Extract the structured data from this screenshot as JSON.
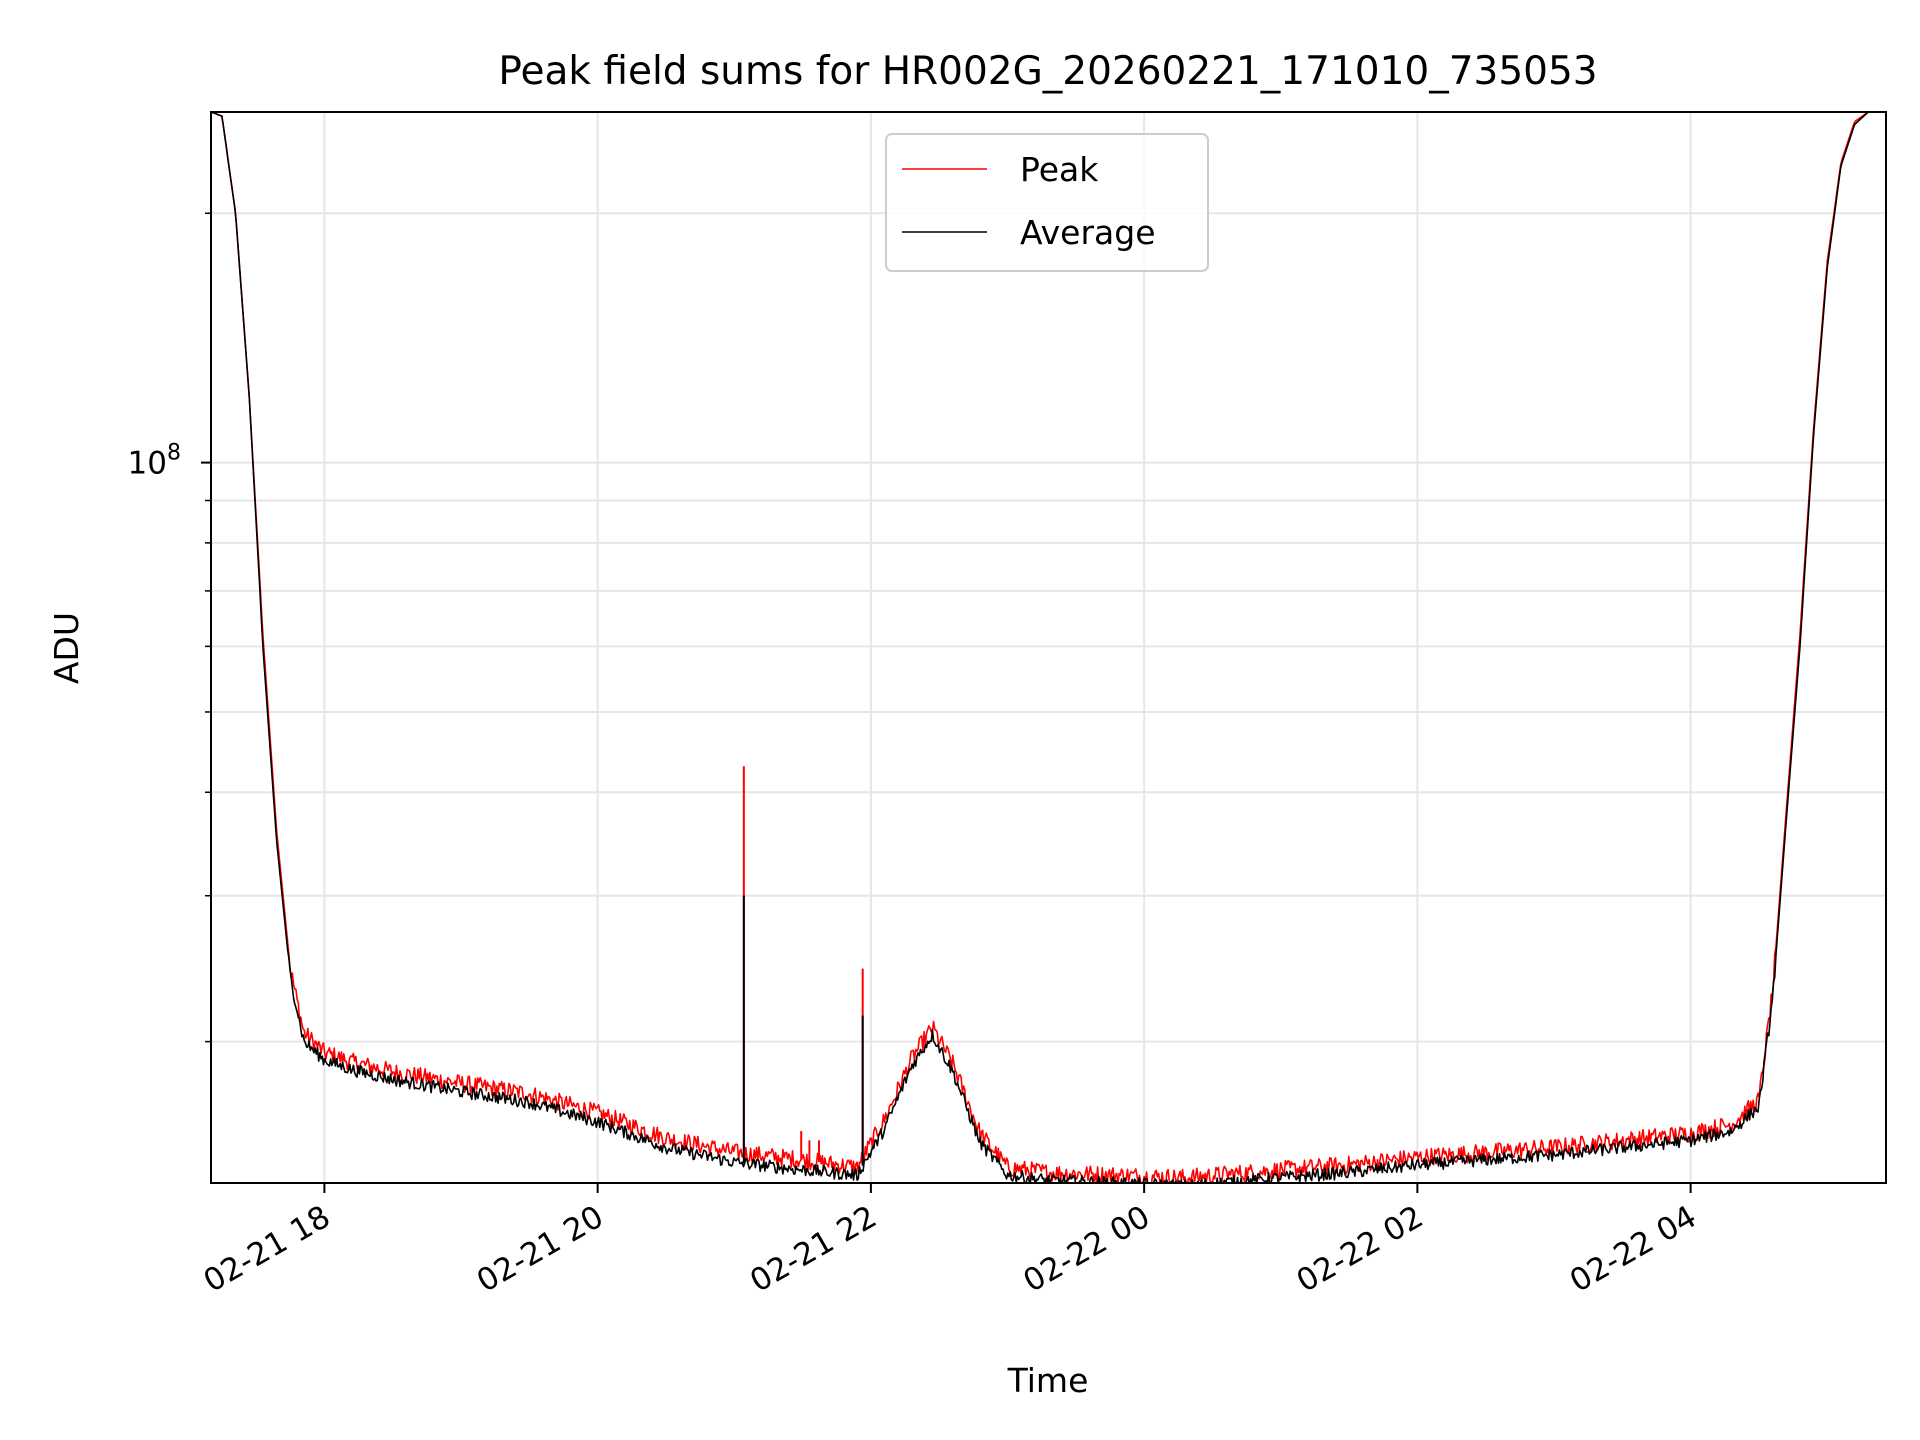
{
  "chart_data": {
    "type": "line",
    "title": "Peak field sums for HR002G_20260221_171010_735053",
    "xlabel": "Time",
    "ylabel": "ADU",
    "y_scale": "log",
    "ylim": [
      13500000,
      265000000
    ],
    "xlim_hours": [
      17.17,
      29.43
    ],
    "grid": true,
    "legend_position": "upper center",
    "x_ticks": [
      {
        "value": 18,
        "label": "02-21 18"
      },
      {
        "value": 20,
        "label": "02-21 20"
      },
      {
        "value": 22,
        "label": "02-21 22"
      },
      {
        "value": 24,
        "label": "02-22 00"
      },
      {
        "value": 26,
        "label": "02-22 02"
      },
      {
        "value": 28,
        "label": "02-22 04"
      }
    ],
    "y_ticks": [
      {
        "value": 100000000,
        "label_base": "10",
        "label_exp": "8"
      }
    ],
    "y_minor_ticks": [
      20000000,
      30000000,
      40000000,
      50000000,
      60000000,
      70000000,
      80000000,
      90000000,
      200000000
    ],
    "series": [
      {
        "name": "Peak",
        "color": "#ff0000",
        "x": [
          17.17,
          17.25,
          17.35,
          17.45,
          17.55,
          17.65,
          17.75,
          17.85,
          18.0,
          18.2,
          18.5,
          19.0,
          19.5,
          20.0,
          20.5,
          21.0,
          21.5,
          21.9,
          22.1,
          22.3,
          22.45,
          22.6,
          22.8,
          23.0,
          23.3,
          23.8,
          24.3,
          25.0,
          25.5,
          26.0,
          26.5,
          27.0,
          27.5,
          28.0,
          28.3,
          28.5,
          28.6,
          28.7,
          28.8,
          28.9,
          29.0,
          29.1,
          29.2,
          29.3,
          29.43
        ],
        "values": [
          265000000,
          262000000,
          200000000,
          120000000,
          62000000,
          36000000,
          24500000,
          20500000,
          19400000,
          18900000,
          18400000,
          17800000,
          17300000,
          16400000,
          15300000,
          14700000,
          14400000,
          14100000,
          16100000,
          19100000,
          20800000,
          18800000,
          15500000,
          14100000,
          13900000,
          13800000,
          13700000,
          14000000,
          14200000,
          14500000,
          14700000,
          14900000,
          15200000,
          15500000,
          15900000,
          17000000,
          23000000,
          38000000,
          62000000,
          110000000,
          175000000,
          230000000,
          258000000,
          265000000,
          265000000
        ],
        "spikes": [
          {
            "x": 21.07,
            "value": 43000000
          },
          {
            "x": 21.49,
            "value": 15600000
          },
          {
            "x": 21.55,
            "value": 15200000
          },
          {
            "x": 21.62,
            "value": 15200000
          },
          {
            "x": 21.94,
            "value": 24500000
          }
        ]
      },
      {
        "name": "Average",
        "color": "#000000",
        "x": [
          17.17,
          17.25,
          17.35,
          17.45,
          17.55,
          17.65,
          17.75,
          17.85,
          18.0,
          18.2,
          18.5,
          19.0,
          19.5,
          20.0,
          20.5,
          21.0,
          21.5,
          21.9,
          22.1,
          22.3,
          22.45,
          22.6,
          22.8,
          23.0,
          23.3,
          23.8,
          24.3,
          25.0,
          25.5,
          26.0,
          26.5,
          27.0,
          27.5,
          28.0,
          28.3,
          28.5,
          28.6,
          28.7,
          28.8,
          28.9,
          29.0,
          29.1,
          29.2,
          29.3,
          29.43
        ],
        "values": [
          265000000,
          262000000,
          200000000,
          120000000,
          60000000,
          35000000,
          24000000,
          20000000,
          19000000,
          18500000,
          18000000,
          17400000,
          16900000,
          16000000,
          14900000,
          14300000,
          14000000,
          13800000,
          15700000,
          18700000,
          20400000,
          18400000,
          15100000,
          13800000,
          13600000,
          13500000,
          13400000,
          13700000,
          13900000,
          14200000,
          14400000,
          14600000,
          14900000,
          15200000,
          15600000,
          16700000,
          22500000,
          37000000,
          60000000,
          108000000,
          172000000,
          228000000,
          256000000,
          265000000,
          265000000
        ],
        "spikes": [
          {
            "x": 21.07,
            "value": 30000000
          },
          {
            "x": 21.94,
            "value": 21500000
          }
        ]
      }
    ]
  }
}
